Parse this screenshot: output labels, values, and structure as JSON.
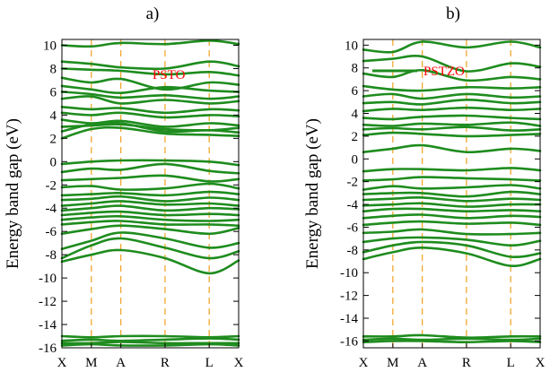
{
  "colors": {
    "band": "#1e8c1e",
    "kline": "#f0a020",
    "legend_text": "#ff0000",
    "axis": "#000000"
  },
  "chart_data": [
    {
      "type": "line",
      "panel_label": "a)",
      "legend": {
        "label": "PSTO",
        "show_line": false
      },
      "ylabel": "Energy band gap (eV)",
      "ylim": [
        -16,
        10.5
      ],
      "yticks": [
        10,
        8,
        6,
        4,
        2,
        0,
        -2,
        -4,
        -6,
        -8,
        -10,
        -12,
        -14,
        -16
      ],
      "kpoints": [
        "X",
        "M",
        "A",
        "R",
        "L",
        "X"
      ],
      "kpos": [
        0,
        1,
        2,
        3.5,
        5,
        6
      ],
      "bands": [
        [
          10.0,
          9.9,
          10.2,
          10.1,
          10.4,
          10.1
        ],
        [
          8.6,
          8.4,
          8.1,
          8.0,
          8.6,
          8.2
        ],
        [
          8.0,
          7.9,
          7.8,
          7.5,
          7.7,
          7.4
        ],
        [
          7.2,
          6.8,
          7.1,
          6.2,
          6.8,
          6.6
        ],
        [
          6.5,
          6.2,
          5.9,
          6.4,
          6.1,
          6.0
        ],
        [
          6.0,
          5.8,
          5.5,
          5.7,
          5.4,
          5.6
        ],
        [
          5.4,
          5.6,
          5.0,
          5.3,
          5.0,
          5.2
        ],
        [
          4.7,
          4.5,
          4.6,
          4.2,
          4.5,
          4.4
        ],
        [
          4.2,
          4.0,
          4.2,
          3.8,
          4.0,
          3.9
        ],
        [
          3.6,
          3.3,
          3.5,
          3.0,
          3.3,
          3.1
        ],
        [
          3.0,
          3.1,
          3.2,
          2.8,
          2.7,
          2.9
        ],
        [
          2.6,
          3.2,
          3.3,
          2.6,
          2.7,
          2.5
        ],
        [
          2.0,
          2.8,
          2.9,
          2.4,
          2.3,
          2.2
        ],
        [
          -0.2,
          0.0,
          0.1,
          0.1,
          0.0,
          -0.3
        ],
        [
          -0.9,
          -0.6,
          -0.7,
          -0.2,
          -0.8,
          -1.0
        ],
        [
          -1.6,
          -1.5,
          -1.4,
          -1.2,
          -1.7,
          -1.5
        ],
        [
          -2.2,
          -2.1,
          -2.4,
          -2.3,
          -1.9,
          -2.3
        ],
        [
          -2.9,
          -2.8,
          -2.7,
          -2.9,
          -2.6,
          -2.8
        ],
        [
          -3.3,
          -3.2,
          -3.0,
          -3.4,
          -3.1,
          -3.3
        ],
        [
          -3.8,
          -3.6,
          -3.4,
          -3.7,
          -3.6,
          -3.8
        ],
        [
          -4.2,
          -4.0,
          -3.8,
          -4.2,
          -4.0,
          -4.1
        ],
        [
          -4.6,
          -4.4,
          -4.3,
          -4.6,
          -4.5,
          -4.6
        ],
        [
          -5.0,
          -4.8,
          -4.7,
          -5.0,
          -5.1,
          -5.0
        ],
        [
          -5.4,
          -5.2,
          -5.1,
          -5.4,
          -5.4,
          -5.5
        ],
        [
          -6.2,
          -5.8,
          -5.5,
          -5.8,
          -6.2,
          -5.7
        ],
        [
          -7.5,
          -6.8,
          -6.1,
          -6.6,
          -7.4,
          -7.0
        ],
        [
          -8.3,
          -7.2,
          -6.6,
          -7.4,
          -8.3,
          -7.7
        ],
        [
          -8.6,
          -8.0,
          -7.6,
          -8.3,
          -9.6,
          -8.5
        ],
        [
          -15.0,
          -15.1,
          -15.0,
          -15.0,
          -15.1,
          -15.0
        ],
        [
          -15.4,
          -15.3,
          -15.4,
          -15.3,
          -15.2,
          -15.3
        ],
        [
          -15.6,
          -15.6,
          -15.5,
          -15.6,
          -15.6,
          -15.6
        ],
        [
          -15.8,
          -15.7,
          -15.8,
          -15.8,
          -15.7,
          -15.8
        ]
      ]
    },
    {
      "type": "line",
      "panel_label": "b)",
      "legend": {
        "label": "PSTZO",
        "show_line": true
      },
      "ylabel": "Energy band gap (eV)",
      "ylim": [
        -16.6,
        10.5
      ],
      "yticks": [
        10,
        8,
        6,
        4,
        2,
        0,
        -2,
        -4,
        -6,
        -8,
        -10,
        -12,
        -14,
        -16
      ],
      "kpoints": [
        "X",
        "M",
        "A",
        "R",
        "L",
        "X"
      ],
      "kpos": [
        0,
        1,
        2,
        3.5,
        5,
        6
      ],
      "bands": [
        [
          9.6,
          9.4,
          10.3,
          9.8,
          10.3,
          9.8
        ],
        [
          8.6,
          8.8,
          9.0,
          7.7,
          8.4,
          8.1
        ],
        [
          7.5,
          7.2,
          7.8,
          6.9,
          7.2,
          7.0
        ],
        [
          6.4,
          6.1,
          6.0,
          6.3,
          6.2,
          6.3
        ],
        [
          5.5,
          5.7,
          5.3,
          5.7,
          5.4,
          5.5
        ],
        [
          4.9,
          5.0,
          4.8,
          5.2,
          4.9,
          5.0
        ],
        [
          4.2,
          4.4,
          4.3,
          4.5,
          4.3,
          4.4
        ],
        [
          3.6,
          3.5,
          3.7,
          3.8,
          3.6,
          3.5
        ],
        [
          3.0,
          2.9,
          3.1,
          3.0,
          3.2,
          2.9
        ],
        [
          2.6,
          2.7,
          2.6,
          2.8,
          2.5,
          2.6
        ],
        [
          2.1,
          2.3,
          2.2,
          2.0,
          2.1,
          2.2
        ],
        [
          0.6,
          0.9,
          1.2,
          0.6,
          0.9,
          0.7
        ],
        [
          -1.1,
          -0.9,
          -0.9,
          -1.0,
          -0.8,
          -1.0
        ],
        [
          -1.9,
          -1.8,
          -1.6,
          -1.7,
          -1.8,
          -1.9
        ],
        [
          -2.7,
          -2.4,
          -2.6,
          -2.5,
          -2.3,
          -2.6
        ],
        [
          -3.1,
          -3.0,
          -3.0,
          -3.3,
          -2.9,
          -3.1
        ],
        [
          -3.6,
          -3.5,
          -3.4,
          -3.7,
          -3.5,
          -3.6
        ],
        [
          -4.1,
          -4.0,
          -3.9,
          -4.2,
          -4.0,
          -4.0
        ],
        [
          -4.6,
          -4.4,
          -4.4,
          -4.6,
          -4.5,
          -4.6
        ],
        [
          -5.2,
          -5.0,
          -4.9,
          -5.2,
          -5.0,
          -5.1
        ],
        [
          -5.8,
          -5.6,
          -5.5,
          -5.7,
          -5.6,
          -5.8
        ],
        [
          -6.5,
          -6.4,
          -6.2,
          -6.6,
          -6.6,
          -6.5
        ],
        [
          -7.3,
          -7.0,
          -6.9,
          -7.1,
          -7.6,
          -7.2
        ],
        [
          -8.2,
          -7.6,
          -7.3,
          -7.6,
          -8.6,
          -8.3
        ],
        [
          -8.8,
          -8.2,
          -7.8,
          -8.3,
          -9.4,
          -8.8
        ],
        [
          -15.6,
          -15.6,
          -15.5,
          -15.7,
          -15.6,
          -15.6
        ],
        [
          -15.9,
          -15.8,
          -15.9,
          -15.8,
          -15.9,
          -15.8
        ],
        [
          -16.1,
          -16.0,
          -16.0,
          -16.1,
          -16.0,
          -16.1
        ]
      ]
    }
  ]
}
